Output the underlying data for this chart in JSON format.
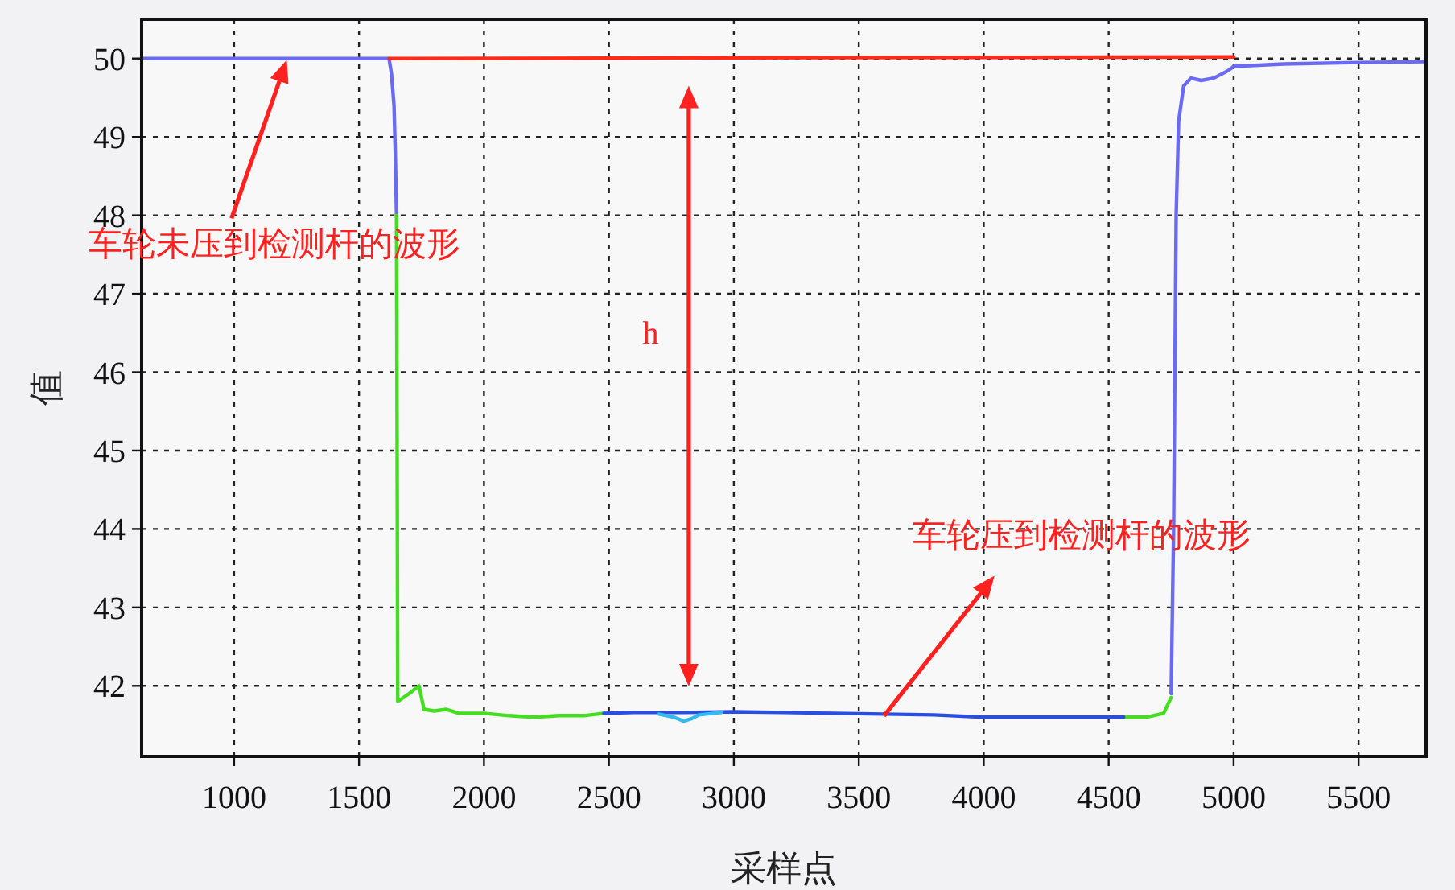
{
  "chart_data": {
    "type": "line",
    "xlabel": "采样点",
    "ylabel": "值",
    "xlim": [
      630,
      5770
    ],
    "ylim": [
      41.1,
      50.5
    ],
    "xticks": [
      1000,
      1500,
      2000,
      2500,
      3000,
      3500,
      4000,
      4500,
      5000,
      5500
    ],
    "yticks": [
      42,
      43,
      44,
      45,
      46,
      47,
      48,
      49,
      50
    ],
    "grid": true,
    "marker": "none",
    "line_style": "solid",
    "series": [
      {
        "color": "#6b6bf2",
        "x": [
          630,
          1000,
          1620,
          1630,
          1640,
          1645,
          1650,
          null,
          4750,
          4760,
          4765,
          4770,
          4780,
          4800,
          4830,
          4870,
          4920,
          4980,
          5000,
          5200,
          5500,
          5770
        ],
        "values": [
          50,
          50,
          50,
          49.8,
          49.4,
          48.8,
          48.0,
          null,
          41.9,
          44,
          46,
          48,
          49.2,
          49.65,
          49.75,
          49.72,
          49.75,
          49.85,
          49.9,
          49.93,
          49.95,
          49.96
        ]
      },
      {
        "color": "#44dd22",
        "x": [
          1650,
          1655,
          1700,
          1720,
          1740,
          1760,
          1800,
          1850,
          1900,
          2000,
          2100,
          2200,
          2300,
          2400,
          2480,
          null,
          4560,
          4650,
          4720,
          4750
        ],
        "values": [
          48.0,
          41.8,
          41.9,
          41.95,
          42.0,
          41.7,
          41.68,
          41.7,
          41.65,
          41.65,
          41.62,
          41.6,
          41.62,
          41.62,
          41.65,
          null,
          41.6,
          41.6,
          41.65,
          41.85
        ]
      },
      {
        "color": "#2a4fe0",
        "x": [
          2480,
          2600,
          2800,
          3000,
          3200,
          3400,
          3600,
          3800,
          4000,
          4200,
          4400,
          4560
        ],
        "values": [
          41.65,
          41.66,
          41.66,
          41.67,
          41.66,
          41.65,
          41.64,
          41.63,
          41.6,
          41.6,
          41.6,
          41.6
        ]
      },
      {
        "color": "#33bbee",
        "x": [
          2700,
          2760,
          2800,
          2830,
          2860,
          2950
        ],
        "values": [
          41.64,
          41.6,
          41.55,
          41.58,
          41.63,
          41.66
        ]
      },
      {
        "color": "#ff2a1a",
        "x": [
          1620,
          3000,
          5000
        ],
        "values": [
          50,
          50.01,
          50.02
        ]
      }
    ],
    "annotations": [
      "车轮未压到检测杆的波形",
      "h",
      "车轮压到检测杆的波形"
    ]
  }
}
